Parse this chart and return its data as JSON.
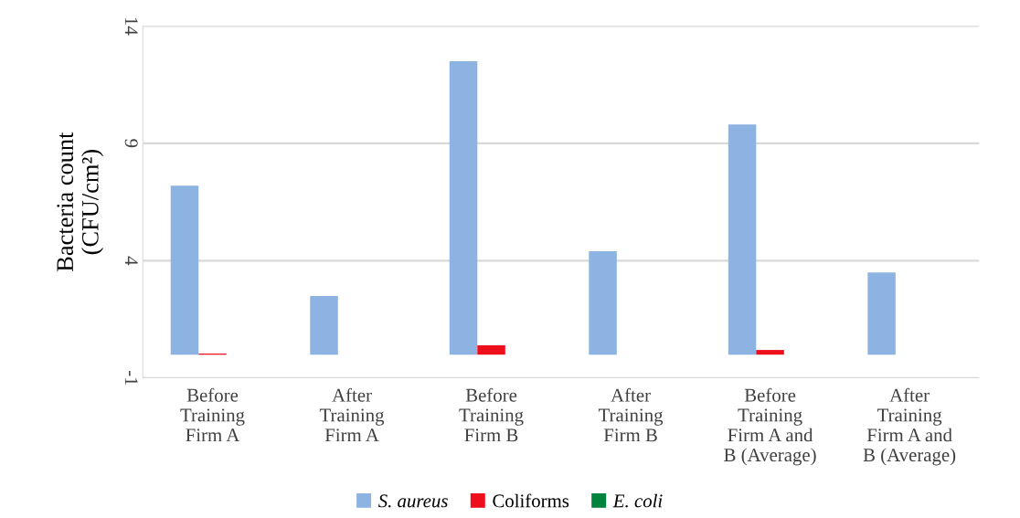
{
  "chart_data": {
    "type": "bar",
    "ylabel": "Bacteria count\n(CFU/cm²)",
    "categories": [
      "Before\nTraining\nFirm A",
      "After\nTraining\nFirm A",
      "Before\nTraining\nFirm B",
      "After\nTraining\nFirm B",
      "Before\nTraining\nFirm A and\nB (Average)",
      "After\nTraining\nFirm A and\nB (Average)"
    ],
    "series": [
      {
        "name": "S. aureus",
        "color": "#8db3e2",
        "values": [
          7.2,
          2.5,
          12.5,
          4.4,
          9.8,
          3.5
        ]
      },
      {
        "name": "Coliforms",
        "color": "#ee0f1c",
        "values": [
          0.05,
          0,
          0.4,
          0,
          0.2,
          0
        ]
      },
      {
        "name": "E. coli",
        "color": "#00843d",
        "values": [
          0,
          0,
          0,
          0,
          0,
          0
        ]
      }
    ],
    "ylim": [
      -1,
      14
    ],
    "yticks": [
      -1,
      4,
      9,
      14
    ],
    "grid": "y",
    "legend": "bottom"
  }
}
